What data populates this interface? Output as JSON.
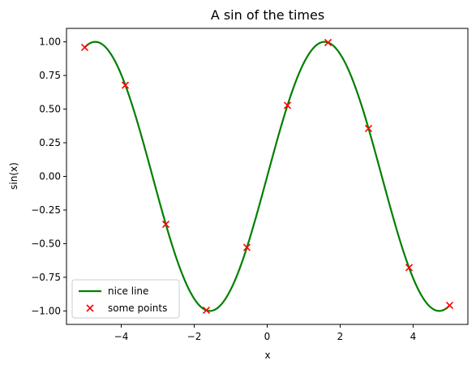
{
  "chart_data": {
    "type": "line",
    "title": "A sin of the times",
    "xlabel": "x",
    "ylabel": "sin(x)",
    "xlim": [
      -5.5,
      5.5
    ],
    "ylim": [
      -1.1,
      1.1
    ],
    "xticks": [
      -4,
      -2,
      0,
      2,
      4
    ],
    "xtick_labels": [
      "−4",
      "−2",
      "0",
      "2",
      "4"
    ],
    "yticks": [
      -1.0,
      -0.75,
      -0.5,
      -0.25,
      0.0,
      0.25,
      0.5,
      0.75,
      1.0
    ],
    "ytick_labels": [
      "−1.00",
      "−0.75",
      "−0.50",
      "−0.25",
      "0.00",
      "0.25",
      "0.50",
      "0.75",
      "1.00"
    ],
    "grid": false,
    "legend_position": "lower-left",
    "series": [
      {
        "name": "nice line",
        "kind": "line",
        "color": "#008000",
        "function": "sin(x)",
        "x_range": [
          -5,
          5
        ]
      },
      {
        "name": "some points",
        "kind": "scatter",
        "marker": "x",
        "color": "#ff0000",
        "x": [
          -5.0,
          -3.889,
          -2.778,
          -1.667,
          -0.556,
          0.556,
          1.667,
          2.778,
          3.889,
          5.0
        ],
        "y": [
          0.959,
          0.678,
          -0.356,
          -0.995,
          -0.528,
          0.528,
          0.995,
          0.356,
          -0.678,
          -0.959
        ]
      }
    ]
  }
}
